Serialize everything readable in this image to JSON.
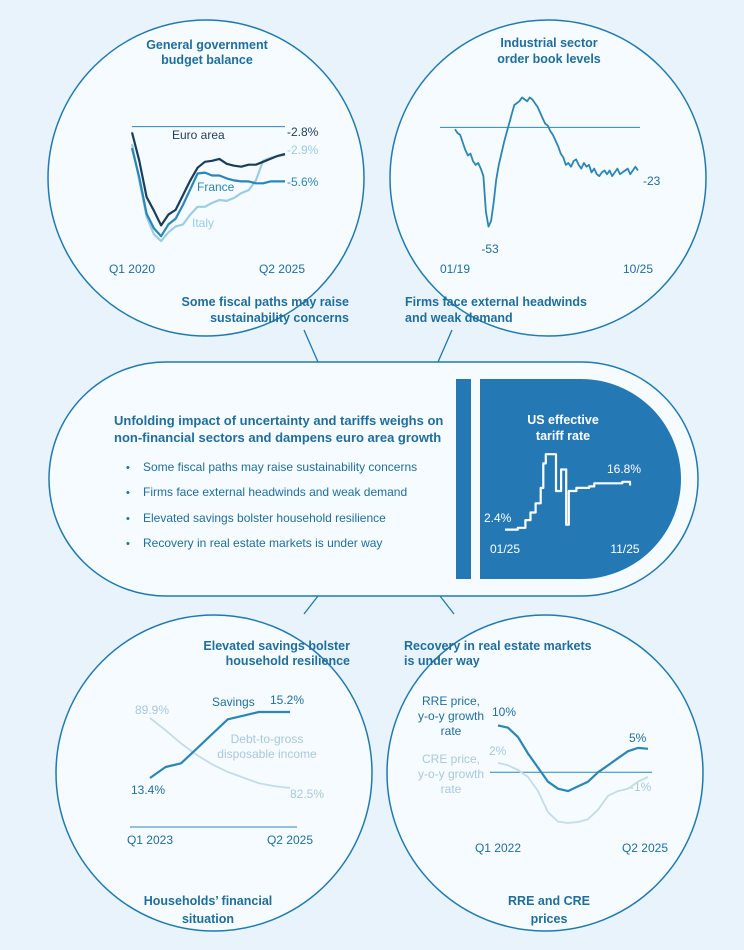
{
  "colors": {
    "background": "#e8f3fb",
    "panel": "#f5fbfe",
    "outline": "#1f7ab0",
    "title_text": "#1f6e9e",
    "dark_blue": "#1b3d5c",
    "mid_blue": "#2a87b5",
    "light_blue": "#9ccce6",
    "pale_blue": "#c4dcea",
    "tariff_box": "#2479b5",
    "white": "#ffffff"
  },
  "center": {
    "title_line1": "Unfolding impact of uncertainty and tariffs weighs on",
    "title_line2": "non-financial sectors and dampens euro area growth",
    "bullets": [
      "Some fiscal paths may raise sustainability concerns",
      "Firms face external headwinds and weak demand",
      "Elevated savings bolster household resilience",
      "Recovery in real estate markets is under way"
    ],
    "bullet_symbol": "•"
  },
  "panels": {
    "budget": {
      "title_line1": "General government",
      "title_line2": "budget balance",
      "caption_line1": "Some fiscal paths may raise",
      "caption_line2": "sustainability concerns"
    },
    "orders": {
      "title_line1": "Industrial sector",
      "title_line2": "order book levels",
      "caption_line1": "Firms face external headwinds",
      "caption_line2": "and weak demand"
    },
    "households": {
      "title_line1": "Elevated savings bolster",
      "title_line2": "household resilience",
      "caption_line1": "Households’ financial",
      "caption_line2": "situation"
    },
    "realestate": {
      "title_line1": "Recovery in real estate markets",
      "title_line2": "is under way",
      "caption_line1": "RRE and CRE",
      "caption_line2": "prices"
    },
    "tariff": {
      "title_line1": "US effective",
      "title_line2": "tariff rate"
    }
  },
  "chart_data": [
    {
      "id": "budget",
      "type": "line",
      "title": "General government budget balance",
      "x_start_label": "Q1 2020",
      "x_end_label": "Q2 2025",
      "ylim": [
        -12,
        2
      ],
      "reference_line": 0,
      "series": [
        {
          "name": "Euro area",
          "color_key": "dark_blue",
          "end_label": "-2.8%",
          "values": [
            -0.6,
            -3.5,
            -7.2,
            -8.6,
            -10.1,
            -9.0,
            -8.5,
            -7.0,
            -5.5,
            -4.2,
            -3.6,
            -3.5,
            -3.3,
            -3.8,
            -4.0,
            -4.1,
            -3.9,
            -3.9,
            -3.6,
            -3.3,
            -3.0,
            -2.8
          ]
        },
        {
          "name": "France",
          "color_key": "mid_blue",
          "end_label": "-5.6%",
          "values": [
            -2.2,
            -5.2,
            -8.9,
            -10.4,
            -11.2,
            -10.0,
            -9.4,
            -8.0,
            -6.4,
            -4.8,
            -4.7,
            -5.0,
            -5.0,
            -5.3,
            -5.5,
            -5.6,
            -5.6,
            -5.8,
            -5.8,
            -5.6,
            -5.6,
            -5.6
          ]
        },
        {
          "name": "Italy",
          "color_key": "light_blue",
          "end_label": "-2.9%",
          "values": [
            -1.8,
            -5.5,
            -9.2,
            -11.0,
            -11.7,
            -10.8,
            -10.2,
            -10.0,
            -9.0,
            -8.2,
            -8.2,
            -7.8,
            -7.5,
            -7.6,
            -7.3,
            -6.8,
            -6.5,
            -5.5,
            -3.5,
            -3.2,
            -3.0,
            -2.9
          ]
        }
      ]
    },
    {
      "id": "orders",
      "type": "line",
      "title": "Industrial sector order book levels",
      "x_start_label": "01/19",
      "x_end_label": "10/25",
      "ylim": [
        -58,
        20
      ],
      "reference_line": 0,
      "annotations": [
        {
          "label": "-53"
        },
        {
          "label": "-23"
        }
      ],
      "series": [
        {
          "name": "",
          "color_key": "mid_blue",
          "values": [
            -1,
            -3,
            -4,
            -8,
            -12,
            -15,
            -14,
            -18,
            -20,
            -19,
            -22,
            -26,
            -45,
            -53,
            -50,
            -40,
            -28,
            -20,
            -14,
            -8,
            -3,
            2,
            7,
            12,
            13,
            14,
            16,
            15,
            14,
            16,
            15,
            13,
            11,
            8,
            5,
            2,
            1,
            -2,
            -4,
            -7,
            -10,
            -14,
            -16,
            -20,
            -19,
            -21,
            -18,
            -17,
            -20,
            -22,
            -19,
            -21,
            -20,
            -24,
            -22,
            -25,
            -26,
            -24,
            -23,
            -25,
            -23,
            -26,
            -24,
            -22,
            -25,
            -24,
            -23,
            -22,
            -25,
            -23,
            -21,
            -23
          ]
        }
      ]
    },
    {
      "id": "tariff",
      "type": "line",
      "title": "US effective tariff rate",
      "x_start_label": "01/25",
      "x_end_label": "11/25",
      "ylim": [
        0,
        30
      ],
      "annotations": [
        {
          "label": "2.4%"
        },
        {
          "label": "16.8%"
        }
      ],
      "series": [
        {
          "name": "",
          "color_key": "white",
          "values": [
            2.4,
            2.4,
            2.4,
            2.4,
            2.4,
            3.0,
            3.0,
            3.0,
            5.5,
            5.5,
            8.0,
            8.0,
            11.0,
            11.0,
            16.0,
            24.0,
            27.0,
            27.0,
            27.0,
            27.0,
            15.0,
            15.0,
            22.0,
            22.0,
            4.0,
            15.0,
            15.0,
            15.0,
            16.0,
            16.0,
            16.0,
            16.0,
            16.0,
            16.5,
            16.5,
            17.5,
            17.5,
            17.5,
            17.5,
            17.5,
            17.5,
            17.5,
            17.5,
            17.5,
            17.5,
            17.5,
            18.0,
            18.0,
            18.0,
            16.8
          ]
        }
      ]
    },
    {
      "id": "households",
      "type": "line",
      "title": "Households’ financial situation",
      "x_start_label": "Q1 2023",
      "x_end_label": "Q2 2025",
      "series": [
        {
          "name": "Savings",
          "color_key": "mid_blue",
          "start_label": "13.4%",
          "end_label": "15.2%",
          "values": [
            13.4,
            13.7,
            13.8,
            14.2,
            14.6,
            15.0,
            15.1,
            15.2,
            15.2,
            15.2
          ]
        },
        {
          "name": "Debt-to-gross disposable income",
          "color_key": "pale_blue",
          "start_label": "89.9%",
          "end_label": "82.5%",
          "values": [
            89.9,
            88.6,
            87.2,
            86.0,
            85.0,
            84.2,
            83.6,
            83.0,
            82.7,
            82.5
          ]
        }
      ]
    },
    {
      "id": "realestate",
      "type": "line",
      "title": "RRE and CRE prices",
      "x_start_label": "Q1 2022",
      "x_end_label": "Q2 2025",
      "ylim": [
        -14,
        12
      ],
      "reference_line": 0,
      "series": [
        {
          "name": "RRE price, y-o-y growth rate",
          "color_key": "mid_blue",
          "start_label": "10%",
          "end_label": "5%",
          "values": [
            10.0,
            9.5,
            7.5,
            4.0,
            1.0,
            -2.0,
            -3.5,
            -4.0,
            -3.0,
            -2.0,
            0.0,
            1.5,
            3.0,
            4.5,
            5.2,
            5.0
          ]
        },
        {
          "name": "CRE price, y-o-y growth rate",
          "color_key": "pale_blue",
          "start_label": "2%",
          "end_label": "-1%",
          "values": [
            2.0,
            1.5,
            0.5,
            -1.0,
            -4.0,
            -8.5,
            -10.5,
            -10.8,
            -10.6,
            -10.0,
            -8.0,
            -5.0,
            -4.0,
            -3.5,
            -2.0,
            -1.0
          ]
        }
      ]
    }
  ]
}
